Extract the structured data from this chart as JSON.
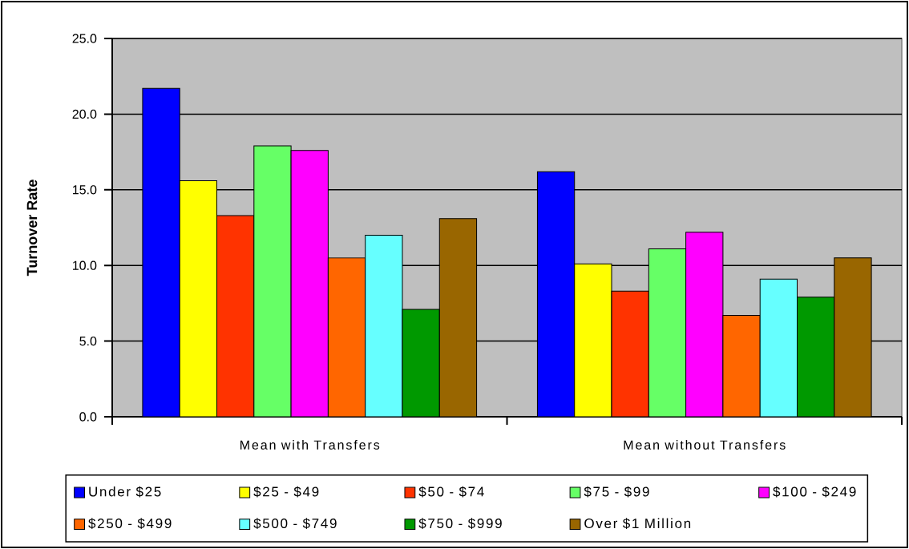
{
  "chart_data": {
    "type": "bar",
    "ylabel": "Turnover Rate",
    "categories": [
      "Mean with Transfers",
      "Mean without Transfers"
    ],
    "series": [
      {
        "name": "Under $25",
        "color": "#0000ff",
        "values": [
          21.7,
          16.2
        ]
      },
      {
        "name": "$25 - $49",
        "color": "#ffff00",
        "values": [
          15.6,
          10.1
        ]
      },
      {
        "name": "$50 - $74",
        "color": "#ff3300",
        "values": [
          13.3,
          8.3
        ]
      },
      {
        "name": "$75 - $99",
        "color": "#66ff66",
        "values": [
          17.9,
          11.1
        ]
      },
      {
        "name": "$100 - $249",
        "color": "#ff00ff",
        "values": [
          17.6,
          12.2
        ]
      },
      {
        "name": "$250 - $499",
        "color": "#ff6600",
        "values": [
          10.5,
          6.7
        ]
      },
      {
        "name": "$500 - $749",
        "color": "#66ffff",
        "values": [
          12.0,
          9.1
        ]
      },
      {
        "name": "$750 - $999",
        "color": "#009900",
        "values": [
          7.1,
          7.9
        ]
      },
      {
        "name": "Over $1 Million",
        "color": "#996600",
        "values": [
          13.1,
          10.5
        ]
      }
    ],
    "ylim": [
      0,
      25
    ],
    "yticks": [
      {
        "value": 0,
        "label": "0.0"
      },
      {
        "value": 5,
        "label": "5.0"
      },
      {
        "value": 10,
        "label": "10.0"
      },
      {
        "value": 15,
        "label": "15.0"
      },
      {
        "value": 20,
        "label": "20.0"
      },
      {
        "value": 25,
        "label": "25.0"
      }
    ],
    "grid": "y",
    "legend": "bottom"
  }
}
